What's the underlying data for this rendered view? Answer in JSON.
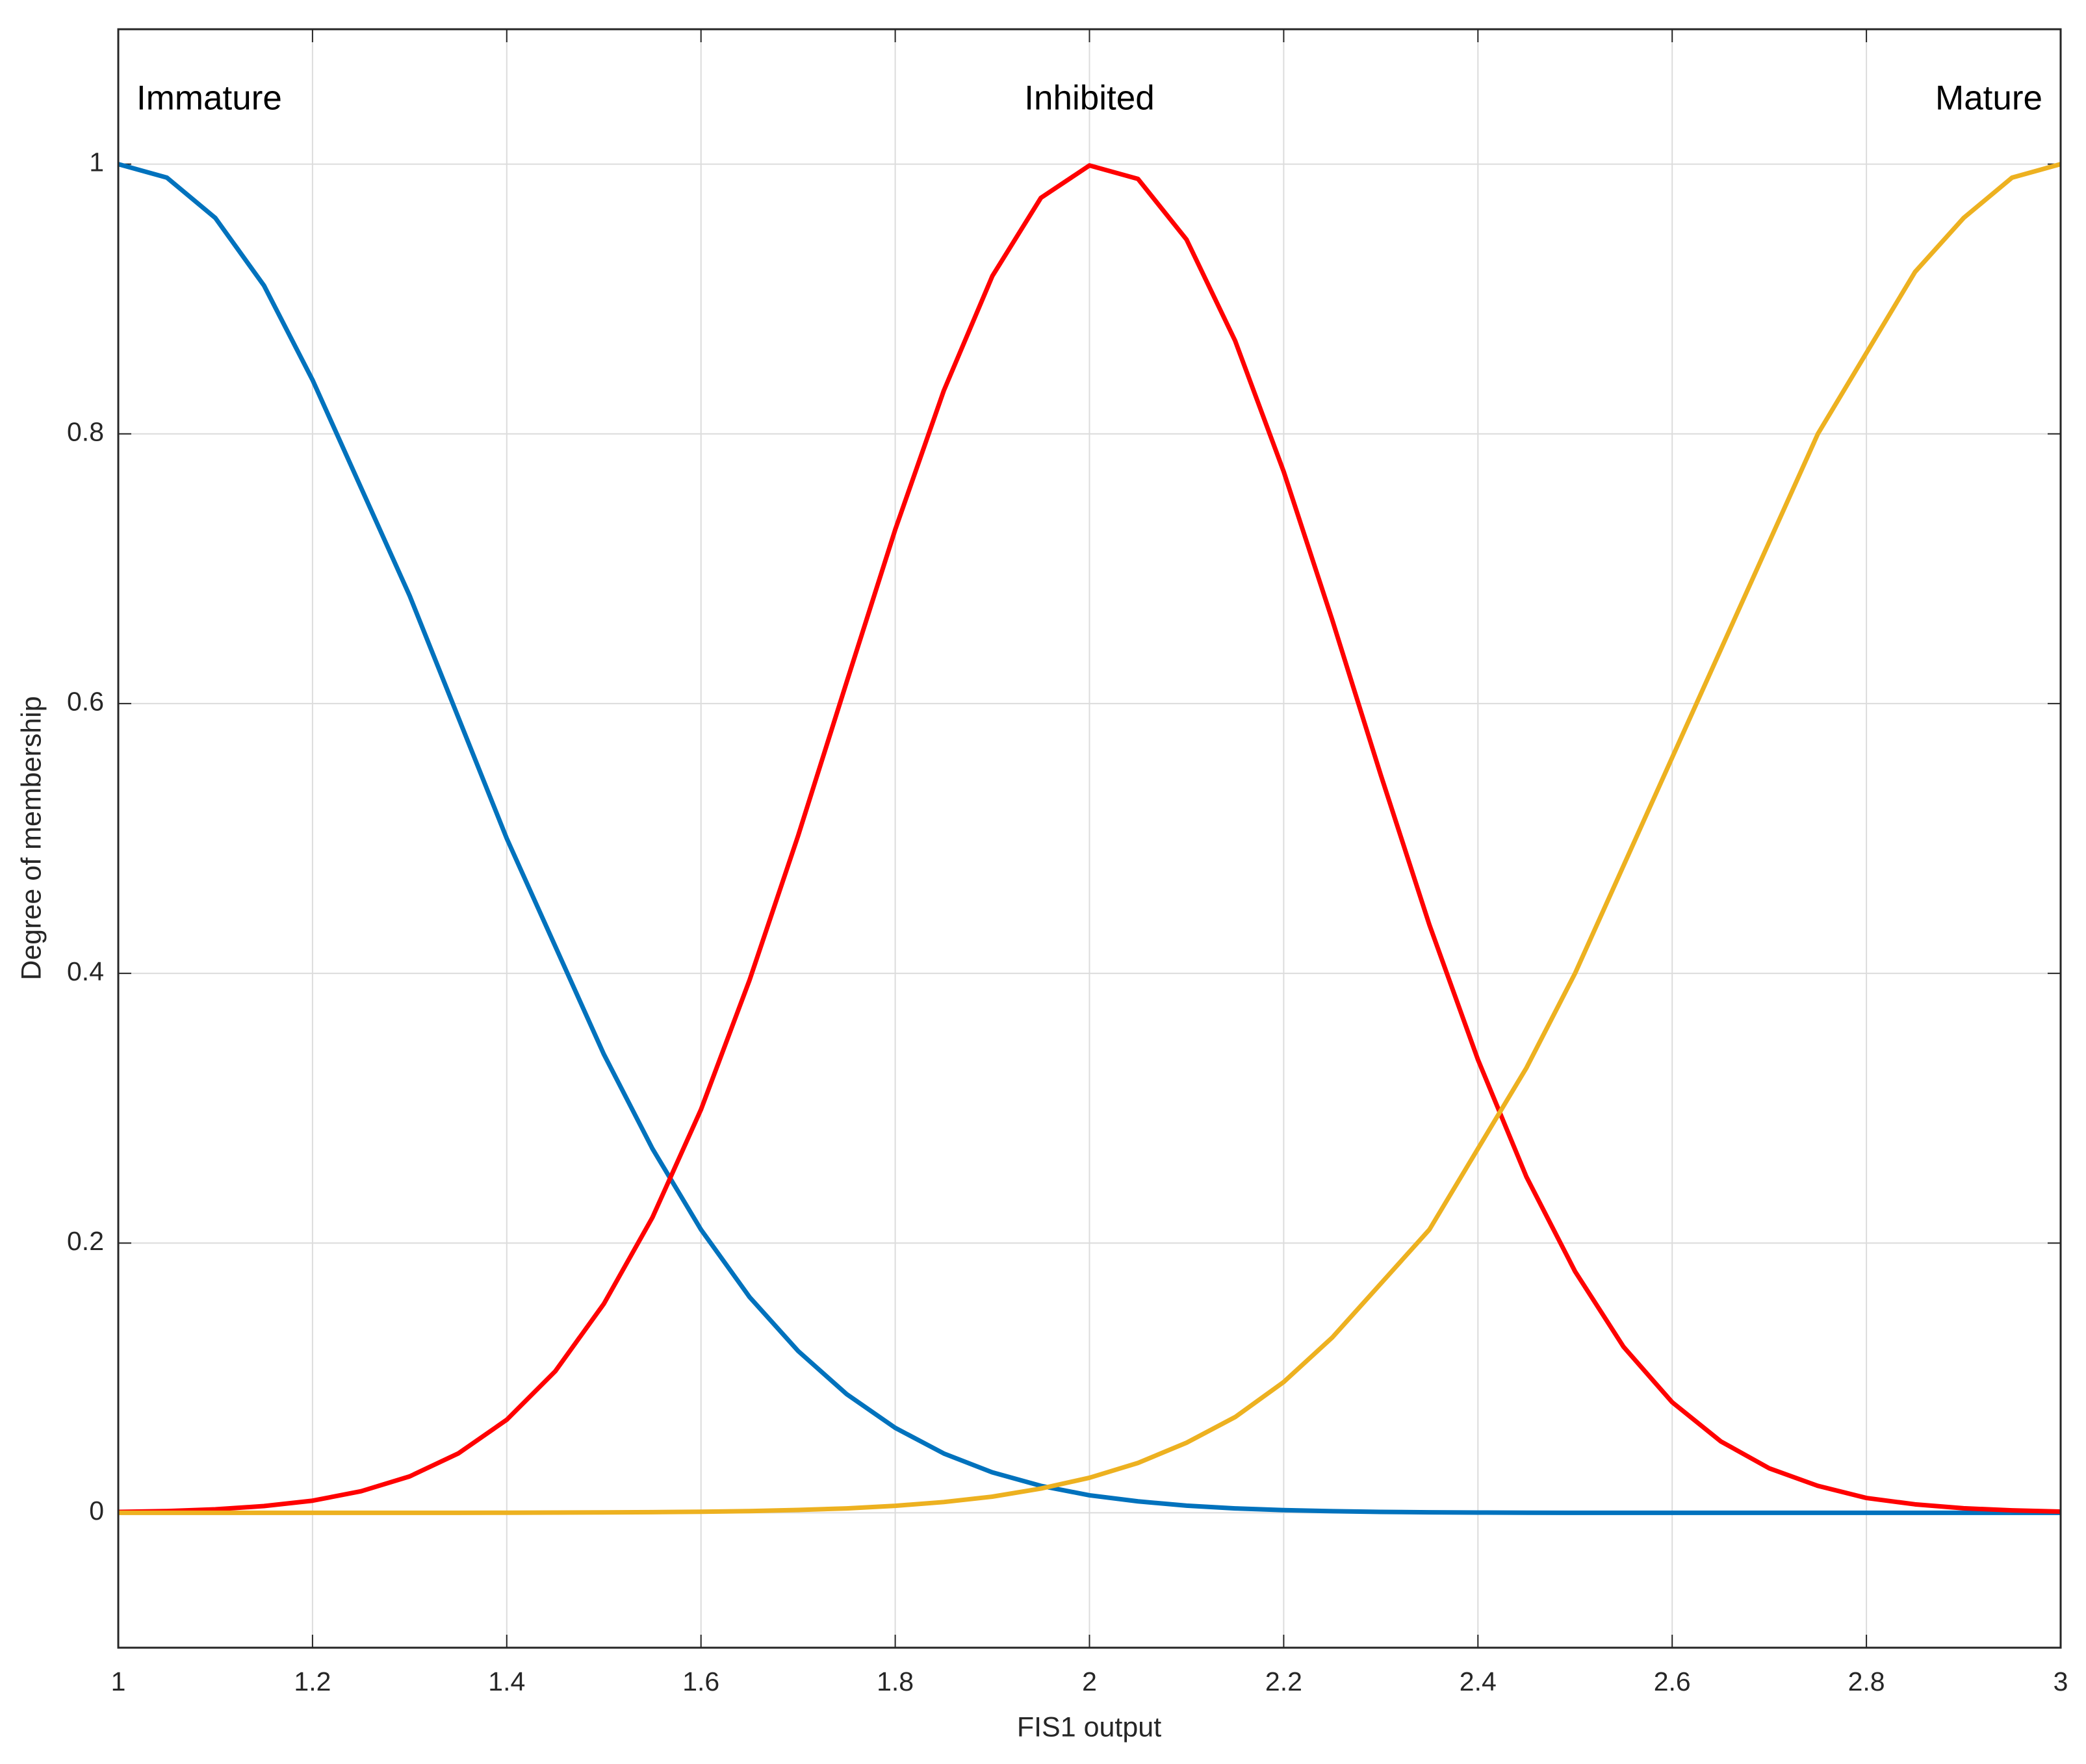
{
  "chart_data": {
    "type": "line",
    "x_label": "FIS1 output",
    "y_label": "Degree of membership",
    "annotations": [
      "Immature",
      "Inhibited",
      "Mature"
    ],
    "x": [
      1,
      1.05,
      1.1,
      1.15,
      1.2,
      1.25,
      1.3,
      1.35,
      1.4,
      1.45,
      1.5,
      1.55,
      1.6,
      1.65,
      1.7,
      1.75,
      1.8,
      1.85,
      1.9,
      1.95,
      2,
      2.05,
      2.1,
      2.15,
      2.2,
      2.25,
      2.3,
      2.35,
      2.4,
      2.45,
      2.5,
      2.55,
      2.6,
      2.65,
      2.7,
      2.75,
      2.8,
      2.85,
      2.9,
      2.95,
      3
    ],
    "series": [
      {
        "name": "Immature",
        "color": "#0072BD",
        "values": [
          1,
          0.99,
          0.96,
          0.91,
          0.84,
          0.76,
          0.68,
          0.59,
          0.5,
          0.42,
          0.34,
          0.27,
          0.21,
          0.16,
          0.12,
          0.088,
          0.063,
          0.044,
          0.03,
          0.02,
          0.013,
          0.0085,
          0.0053,
          0.0033,
          0.002,
          0.0012,
          0.0007,
          0.0004,
          0.0002,
          0.0001,
          0,
          0,
          0,
          0,
          0,
          0,
          0,
          0,
          0,
          0,
          0
        ]
      },
      {
        "name": "Inhibited",
        "color": "#FF0000",
        "values": [
          0.0007,
          0.0013,
          0.0026,
          0.005,
          0.009,
          0.016,
          0.027,
          0.044,
          0.069,
          0.105,
          0.155,
          0.219,
          0.299,
          0.395,
          0.502,
          0.616,
          0.729,
          0.832,
          0.917,
          0.975,
          0.999,
          0.989,
          0.944,
          0.869,
          0.772,
          0.662,
          0.547,
          0.436,
          0.336,
          0.249,
          0.179,
          0.123,
          0.082,
          0.053,
          0.033,
          0.02,
          0.011,
          0.0063,
          0.0034,
          0.0018,
          0.0009
        ]
      },
      {
        "name": "Mature",
        "color": "#EDB120",
        "values": [
          0,
          0,
          0,
          0,
          0,
          0,
          0,
          0,
          0.0001,
          0.0002,
          0.0003,
          0.0005,
          0.0008,
          0.0013,
          0.0021,
          0.0033,
          0.0052,
          0.008,
          0.012,
          0.018,
          0.026,
          0.037,
          0.052,
          0.071,
          0.097,
          0.13,
          0.17,
          0.21,
          0.27,
          0.33,
          0.4,
          0.48,
          0.56,
          0.64,
          0.72,
          0.8,
          0.86,
          0.92,
          0.96,
          0.99,
          1
        ]
      }
    ],
    "xlim": [
      1,
      3
    ],
    "ylim": [
      -0.1,
      1.1
    ],
    "xticks": [
      1,
      1.2,
      1.4,
      1.6,
      1.8,
      2,
      2.2,
      2.4,
      2.6,
      2.8,
      3
    ],
    "yticks": [
      0,
      0.2,
      0.4,
      0.6,
      0.8,
      1
    ],
    "grid": true
  }
}
